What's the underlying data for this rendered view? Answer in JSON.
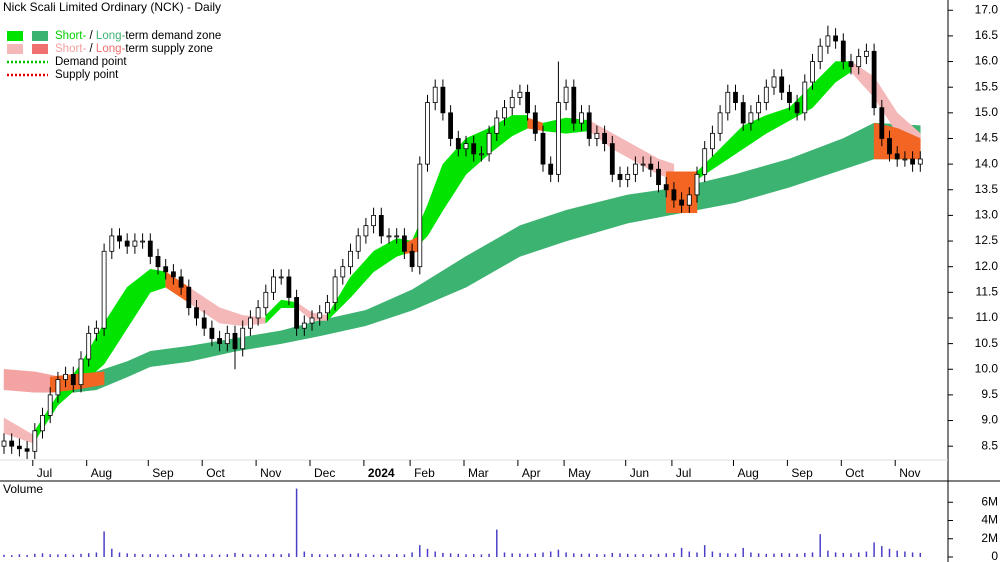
{
  "chart_data": {
    "type": "candlestick",
    "title": "Nick Scali Limited Ordinary (NCK) - Daily",
    "categories": [
      null,
      null,
      null,
      null,
      "Jul",
      null,
      null,
      null,
      null,
      null,
      null,
      "Aug",
      null,
      null,
      null,
      null,
      null,
      null,
      null,
      "Sep",
      null,
      null,
      null,
      null,
      null,
      null,
      "Oct",
      null,
      null,
      null,
      null,
      null,
      null,
      "Nov",
      null,
      null,
      null,
      null,
      null,
      null,
      "Dec",
      null,
      null,
      null,
      null,
      null,
      null,
      "2024",
      null,
      null,
      null,
      null,
      null,
      "Feb",
      null,
      null,
      null,
      null,
      null,
      null,
      "Mar",
      null,
      null,
      null,
      null,
      null,
      null,
      "Apr",
      null,
      null,
      null,
      null,
      null,
      "May",
      null,
      null,
      null,
      null,
      null,
      null,
      null,
      "Jun",
      null,
      null,
      null,
      null,
      null,
      "Jul",
      null,
      null,
      null,
      null,
      null,
      null,
      null,
      "Aug",
      null,
      null,
      null,
      null,
      null,
      null,
      "Sep",
      null,
      null,
      null,
      null,
      null,
      null,
      "Oct",
      null,
      null,
      null,
      null,
      null,
      null,
      "Nov",
      null,
      null,
      null
    ],
    "open": [
      8.5,
      8.6,
      8.5,
      8.45,
      8.4,
      8.8,
      9.1,
      9.5,
      9.8,
      9.9,
      9.7,
      10.2,
      10.7,
      10.8,
      12.3,
      12.6,
      12.5,
      12.4,
      12.5,
      12.5,
      12.2,
      12.0,
      11.9,
      11.8,
      11.6,
      11.2,
      11.0,
      10.8,
      10.6,
      10.5,
      10.7,
      10.4,
      10.8,
      11.0,
      11.2,
      11.5,
      11.8,
      11.8,
      11.4,
      10.8,
      10.9,
      11.0,
      11.1,
      11.3,
      11.8,
      12.0,
      12.3,
      12.6,
      12.8,
      13.0,
      12.6,
      12.6,
      12.6,
      12.3,
      12.0,
      14.0,
      15.2,
      15.5,
      15.0,
      14.5,
      14.3,
      14.4,
      14.2,
      14.2,
      14.6,
      14.9,
      15.1,
      15.3,
      15.4,
      15.0,
      14.6,
      14.0,
      13.8,
      15.2,
      15.5,
      14.8,
      15.0,
      14.5,
      14.6,
      14.4,
      13.8,
      13.7,
      13.8,
      14.0,
      14.0,
      13.9,
      13.6,
      13.5,
      13.3,
      13.2,
      13.4,
      13.8,
      14.3,
      14.6,
      15.0,
      15.4,
      15.2,
      14.8,
      15.0,
      15.2,
      15.5,
      15.7,
      15.4,
      15.2,
      15.0,
      15.6,
      16.0,
      16.3,
      16.5,
      16.4,
      16.0,
      15.9,
      16.1,
      16.2,
      15.1,
      14.5,
      14.2,
      14.1,
      14.1,
      14.0
    ],
    "high": [
      8.75,
      8.75,
      8.65,
      8.6,
      8.95,
      9.25,
      9.65,
      9.95,
      10.05,
      10.05,
      10.35,
      10.85,
      10.95,
      12.45,
      12.75,
      12.75,
      12.65,
      12.65,
      12.65,
      12.65,
      12.35,
      12.15,
      12.05,
      11.95,
      11.75,
      11.35,
      11.15,
      10.95,
      10.75,
      10.85,
      10.85,
      10.95,
      11.15,
      11.35,
      11.65,
      11.95,
      11.95,
      11.95,
      11.55,
      11.05,
      11.15,
      11.25,
      11.45,
      11.95,
      12.15,
      12.45,
      12.75,
      12.95,
      13.15,
      13.15,
      12.75,
      12.75,
      12.75,
      12.45,
      14.15,
      15.35,
      15.65,
      15.65,
      15.15,
      14.65,
      14.55,
      14.55,
      14.35,
      14.75,
      15.05,
      15.25,
      15.45,
      15.55,
      15.55,
      15.15,
      14.75,
      14.15,
      16.0,
      15.65,
      15.65,
      15.15,
      15.15,
      14.75,
      14.75,
      14.55,
      13.95,
      13.95,
      14.15,
      14.15,
      14.15,
      14.05,
      13.75,
      13.65,
      13.45,
      13.55,
      13.95,
      14.45,
      14.75,
      15.15,
      15.55,
      15.55,
      15.35,
      15.15,
      15.35,
      15.65,
      15.85,
      15.85,
      15.55,
      15.35,
      15.75,
      16.15,
      16.45,
      16.7,
      16.65,
      16.55,
      16.15,
      16.25,
      16.35,
      16.35,
      15.25,
      14.65,
      14.35,
      14.25,
      14.25,
      14.25
    ],
    "low": [
      8.35,
      8.35,
      8.3,
      8.25,
      8.25,
      8.65,
      8.95,
      9.35,
      9.65,
      9.55,
      9.55,
      10.05,
      10.55,
      10.65,
      12.15,
      12.35,
      12.25,
      12.25,
      12.35,
      12.05,
      11.85,
      11.75,
      11.65,
      11.45,
      11.05,
      10.85,
      10.65,
      10.45,
      10.35,
      10.35,
      10.0,
      10.25,
      10.65,
      10.85,
      11.05,
      11.35,
      11.65,
      11.25,
      10.65,
      10.65,
      10.75,
      10.85,
      10.95,
      11.15,
      11.65,
      11.85,
      12.15,
      12.45,
      12.65,
      12.45,
      12.45,
      12.45,
      12.15,
      11.9,
      11.85,
      13.85,
      15.05,
      14.85,
      14.35,
      14.15,
      14.15,
      14.05,
      14.05,
      14.05,
      14.45,
      14.75,
      14.95,
      15.15,
      14.85,
      14.45,
      13.85,
      13.65,
      13.65,
      15.05,
      14.65,
      14.65,
      14.35,
      14.35,
      14.25,
      13.65,
      13.55,
      13.55,
      13.65,
      13.85,
      13.75,
      13.45,
      13.35,
      13.15,
      13.05,
      13.05,
      13.25,
      13.65,
      14.15,
      14.45,
      14.85,
      15.05,
      14.65,
      14.65,
      14.85,
      15.05,
      15.35,
      15.25,
      15.05,
      14.85,
      14.85,
      15.45,
      15.85,
      16.15,
      16.25,
      15.85,
      15.75,
      15.75,
      15.95,
      14.95,
      14.35,
      14.05,
      13.95,
      13.95,
      13.85,
      13.85
    ],
    "close": [
      8.6,
      8.5,
      8.45,
      8.4,
      8.8,
      9.1,
      9.5,
      9.8,
      9.9,
      9.7,
      10.2,
      10.7,
      10.8,
      12.3,
      12.6,
      12.5,
      12.4,
      12.5,
      12.5,
      12.2,
      12.0,
      11.9,
      11.8,
      11.6,
      11.2,
      11.0,
      10.8,
      10.6,
      10.5,
      10.7,
      10.4,
      10.8,
      11.0,
      11.2,
      11.5,
      11.8,
      11.8,
      11.4,
      10.8,
      10.9,
      11.0,
      11.1,
      11.3,
      11.8,
      12.0,
      12.3,
      12.6,
      12.8,
      13.0,
      12.6,
      12.6,
      12.6,
      12.3,
      12.0,
      14.0,
      15.2,
      15.5,
      15.0,
      14.5,
      14.3,
      14.4,
      14.2,
      14.2,
      14.6,
      14.9,
      15.1,
      15.3,
      15.4,
      15.0,
      14.6,
      14.0,
      13.8,
      15.2,
      15.5,
      14.8,
      15.0,
      14.5,
      14.6,
      14.4,
      13.8,
      13.7,
      13.8,
      14.0,
      14.0,
      13.9,
      13.6,
      13.5,
      13.3,
      13.2,
      13.4,
      13.8,
      14.3,
      14.6,
      15.0,
      15.4,
      15.2,
      14.8,
      15.0,
      15.2,
      15.5,
      15.7,
      15.4,
      15.2,
      15.0,
      15.6,
      16.0,
      16.3,
      16.5,
      16.4,
      16.0,
      15.9,
      16.1,
      16.2,
      15.1,
      14.5,
      14.2,
      14.1,
      14.1,
      14.0,
      14.1
    ],
    "volume": [
      250000,
      200000,
      300000,
      220000,
      350000,
      400000,
      300000,
      280000,
      320000,
      260000,
      350000,
      420000,
      500000,
      2800000,
      900000,
      500000,
      400000,
      350000,
      300000,
      320000,
      280000,
      300000,
      250000,
      330000,
      400000,
      350000,
      300000,
      280000,
      260000,
      300000,
      450000,
      350000,
      300000,
      280000,
      320000,
      360000,
      300000,
      400000,
      7500000,
      600000,
      350000,
      300000,
      280000,
      320000,
      300000,
      350000,
      400000,
      300000,
      250000,
      280000,
      300000,
      320000,
      280000,
      500000,
      1300000,
      900000,
      600000,
      450000,
      400000,
      350000,
      300000,
      320000,
      280000,
      350000,
      3000000,
      500000,
      400000,
      380000,
      350000,
      420000,
      500000,
      600000,
      800000,
      500000,
      400000,
      350000,
      380000,
      320000,
      300000,
      450000,
      400000,
      350000,
      300000,
      320000,
      300000,
      350000,
      400000,
      450000,
      1000000,
      600000,
      500000,
      1300000,
      600000,
      450000,
      400000,
      380000,
      1000000,
      500000,
      400000,
      350000,
      380000,
      420000,
      400000,
      350000,
      450000,
      500000,
      2500000,
      700000,
      500000,
      450000,
      400000,
      500000,
      600000,
      1600000,
      1200000,
      900000,
      700000,
      600000,
      500000,
      450000
    ],
    "volume_label": "Volume",
    "volume_color": "#4a3fc4",
    "ylim": [
      8.25,
      17.2
    ],
    "yticks": [
      8.5,
      {
        "value": 9,
        "label": "9.0"
      },
      9.5,
      {
        "value": 10,
        "label": "10.0"
      },
      10.5,
      {
        "value": 11,
        "label": "11.0"
      },
      11.5,
      {
        "value": 12,
        "label": "12.0"
      },
      12.5,
      {
        "value": 13,
        "label": "13.0"
      },
      13.5,
      {
        "value": 14,
        "label": "14.0"
      },
      14.5,
      {
        "value": 15,
        "label": "15.0"
      },
      15.5,
      {
        "value": 16,
        "label": "16.0"
      },
      16.5,
      {
        "value": 17,
        "label": "17.0"
      }
    ],
    "volume_ylim": [
      0,
      8000000
    ],
    "volume_yticks": [
      0,
      {
        "value": 2000000,
        "label": "2M"
      },
      {
        "value": 4000000,
        "label": "4M"
      },
      {
        "value": 6000000,
        "label": "6M"
      }
    ],
    "zones": [
      {
        "color": "#f4a3a3",
        "x": [
          0,
          4,
          9
        ],
        "upper": [
          10.0,
          9.95,
          9.8
        ],
        "lower": [
          9.6,
          9.55,
          9.55
        ]
      },
      {
        "color": "#3cb371",
        "x": [
          9,
          12,
          16,
          19,
          24,
          30,
          36,
          41,
          47,
          53,
          60,
          67,
          73,
          81,
          88,
          95,
          102,
          109,
          113,
          119
        ],
        "upper": [
          9.8,
          9.95,
          10.15,
          10.35,
          10.45,
          10.6,
          10.75,
          10.95,
          11.15,
          11.55,
          12.2,
          12.8,
          13.1,
          13.4,
          13.55,
          13.8,
          14.1,
          14.5,
          14.8,
          14.75
        ],
        "lower": [
          9.55,
          9.6,
          9.85,
          10.05,
          10.15,
          10.35,
          10.5,
          10.65,
          10.85,
          11.15,
          11.6,
          12.2,
          12.5,
          12.85,
          13.05,
          13.25,
          13.55,
          13.9,
          14.1,
          14.1
        ]
      },
      {
        "color": "#f5b8b8",
        "x": [
          0,
          4
        ],
        "upper": [
          9.05,
          8.7
        ],
        "lower": [
          8.75,
          8.55
        ]
      },
      {
        "color": "#00e400",
        "x": [
          4,
          7,
          10,
          13,
          16,
          19,
          21
        ],
        "upper": [
          8.8,
          9.5,
          10.1,
          10.9,
          11.6,
          11.95,
          11.9
        ],
        "lower": [
          8.6,
          9.3,
          9.7,
          10.1,
          10.8,
          11.5,
          11.6
        ]
      },
      {
        "color": "#f26522",
        "x": [
          6,
          9,
          13
        ],
        "upper": [
          9.85,
          9.9,
          9.95
        ],
        "lower": [
          9.55,
          9.6,
          9.7
        ]
      },
      {
        "color": "#f5b8b8",
        "x": [
          21,
          24,
          28,
          31,
          34
        ],
        "upper": [
          11.9,
          11.6,
          11.2,
          11.05,
          11.0
        ],
        "lower": [
          11.6,
          11.3,
          10.9,
          10.85,
          10.9
        ]
      },
      {
        "color": "#f26522",
        "x": [
          21,
          24
        ],
        "upper": [
          11.9,
          11.6
        ],
        "lower": [
          11.6,
          11.3
        ]
      },
      {
        "color": "#00e400",
        "x": [
          34,
          36,
          38
        ],
        "upper": [
          11.05,
          11.35,
          11.3
        ],
        "lower": [
          10.9,
          11.2,
          11.2
        ]
      },
      {
        "color": "#f5b8b8",
        "x": [
          38,
          40,
          42
        ],
        "upper": [
          11.3,
          11.1,
          11.05
        ],
        "lower": [
          11.2,
          10.95,
          10.95
        ]
      },
      {
        "color": "#00e400",
        "x": [
          42,
          45,
          48,
          51,
          53,
          55,
          57,
          60,
          63,
          66,
          68
        ],
        "upper": [
          11.05,
          11.8,
          12.3,
          12.55,
          12.5,
          13.2,
          14.0,
          14.5,
          14.7,
          14.95,
          14.95
        ],
        "lower": [
          10.95,
          11.4,
          11.9,
          12.2,
          12.3,
          12.6,
          13.1,
          13.8,
          14.2,
          14.55,
          14.7
        ]
      },
      {
        "color": "#f26522",
        "x": [
          52,
          54
        ],
        "upper": [
          12.45,
          12.6
        ],
        "lower": [
          12.25,
          12.3
        ]
      },
      {
        "color": "#f26522",
        "x": [
          68,
          70
        ],
        "upper": [
          14.9,
          14.8
        ],
        "lower": [
          14.7,
          14.65
        ]
      },
      {
        "color": "#00e400",
        "x": [
          70,
          73,
          76
        ],
        "upper": [
          14.8,
          14.9,
          14.85
        ],
        "lower": [
          14.65,
          14.6,
          14.65
        ]
      },
      {
        "color": "#f5b8b8",
        "x": [
          76,
          79,
          82,
          85,
          87
        ],
        "upper": [
          14.85,
          14.6,
          14.35,
          14.1,
          14.0
        ],
        "lower": [
          14.65,
          14.3,
          14.05,
          13.8,
          13.7
        ]
      },
      {
        "color": "#f26522",
        "x": [
          86,
          90
        ],
        "upper": [
          13.85,
          13.85
        ],
        "lower": [
          13.05,
          13.05
        ]
      },
      {
        "color": "#00e400",
        "x": [
          90,
          93,
          96,
          99,
          102,
          105,
          108,
          110
        ],
        "upper": [
          13.85,
          14.3,
          14.75,
          14.95,
          15.1,
          15.55,
          16.0,
          16.0
        ],
        "lower": [
          13.7,
          14.0,
          14.3,
          14.6,
          14.85,
          15.1,
          15.6,
          15.8
        ]
      },
      {
        "color": "#f5b8b8",
        "x": [
          110,
          113,
          116,
          119
        ],
        "upper": [
          16.0,
          15.7,
          15.0,
          14.6
        ],
        "lower": [
          15.8,
          15.3,
          14.6,
          14.3
        ]
      },
      {
        "color": "#f26522",
        "x": [
          113,
          116,
          119
        ],
        "upper": [
          14.8,
          14.7,
          14.5
        ],
        "lower": [
          14.1,
          14.1,
          14.1
        ]
      }
    ],
    "legend": [
      {
        "swatches": [
          "#00e400",
          "#3cb371"
        ],
        "parts": [
          {
            "text": "Short-",
            "color": "#00d000"
          },
          {
            "text": " / ",
            "color": "#000000"
          },
          {
            "text": "Long-",
            "color": "#3cb371"
          },
          {
            "text": "term demand zone",
            "color": "#000000"
          }
        ]
      },
      {
        "swatches": [
          "#f5b8b8",
          "#f07070"
        ],
        "parts": [
          {
            "text": "Short-",
            "color": "#f5a0a0"
          },
          {
            "text": " / ",
            "color": "#000000"
          },
          {
            "text": "Long-",
            "color": "#f07070"
          },
          {
            "text": "term supply zone",
            "color": "#000000"
          }
        ]
      },
      {
        "dotted": "#00c000",
        "parts": [
          {
            "text": "Demand point",
            "color": "#000000"
          }
        ]
      },
      {
        "dotted": "#e00000",
        "parts": [
          {
            "text": "Supply point",
            "color": "#000000"
          }
        ]
      }
    ],
    "up_color": "#ffffff",
    "down_color": "#000000"
  }
}
